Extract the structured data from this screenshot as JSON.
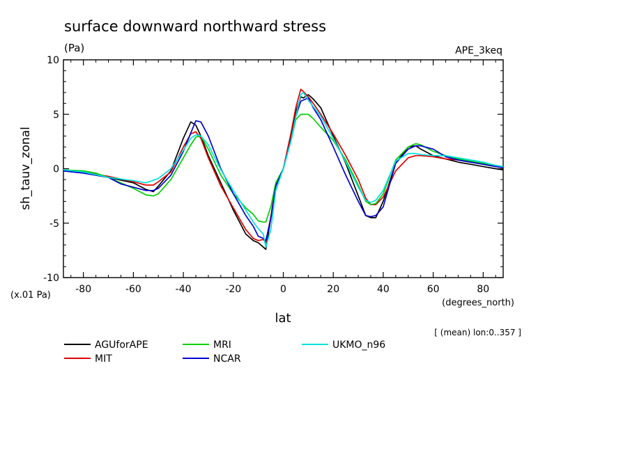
{
  "header": {
    "title": "surface downward northward stress",
    "units": "(Pa)",
    "dataset": "APE_3keq",
    "scale_note": "(x.01 Pa)",
    "x_units": "(degrees_north)",
    "mean_note": "[ (mean) lon:0..357 ]"
  },
  "chart_data": {
    "type": "line",
    "title": "surface downward northward stress",
    "xlabel": "lat",
    "ylabel": "sh_tauv_zonal",
    "xlim": [
      -88,
      88
    ],
    "ylim": [
      -10,
      10
    ],
    "x_ticks": [
      -80,
      -60,
      -40,
      -20,
      0,
      20,
      40,
      60,
      80
    ],
    "x_tick_labels": [
      "-80",
      "-60",
      "-40",
      "-20",
      "0",
      "20",
      "40",
      "60",
      "80"
    ],
    "y_ticks": [
      -10,
      -5,
      0,
      5,
      10
    ],
    "y_tick_labels": [
      "-10",
      "-5",
      "0",
      "5",
      "10"
    ],
    "grid": false,
    "legend_position": "bottom",
    "series": [
      {
        "name": "AGUforAPE",
        "color": "#000000",
        "x": [
          -88,
          -80,
          -70,
          -60,
          -55,
          -52,
          -50,
          -45,
          -40,
          -37,
          -35,
          -33,
          -30,
          -25,
          -20,
          -15,
          -12,
          -10,
          -8,
          -7,
          -5,
          -3,
          0,
          3,
          5,
          7,
          8,
          10,
          12,
          15,
          20,
          25,
          30,
          33,
          35,
          37,
          40,
          45,
          50,
          53,
          55,
          60,
          65,
          70,
          75,
          80,
          85,
          88
        ],
        "y": [
          -0.2,
          -0.4,
          -0.8,
          -1.3,
          -1.9,
          -2.1,
          -1.6,
          -0.2,
          2.8,
          4.3,
          4.0,
          3.0,
          1.2,
          -1.3,
          -3.8,
          -6.0,
          -6.6,
          -6.8,
          -7.2,
          -7.4,
          -4.5,
          -1.5,
          0,
          2.8,
          5.2,
          6.6,
          6.5,
          6.8,
          6.4,
          5.6,
          3.0,
          0.5,
          -2.5,
          -4.3,
          -4.5,
          -4.5,
          -3.0,
          0.5,
          2.0,
          2.1,
          1.8,
          1.2,
          0.9,
          0.6,
          0.4,
          0.2,
          0.0,
          -0.1
        ]
      },
      {
        "name": "MIT",
        "color": "#e00000",
        "x": [
          -88,
          -80,
          -70,
          -60,
          -55,
          -52,
          -50,
          -45,
          -40,
          -37,
          -35,
          -33,
          -30,
          -25,
          -20,
          -15,
          -12,
          -10,
          -8,
          -7,
          -5,
          -3,
          0,
          3,
          5,
          7,
          8,
          10,
          12,
          15,
          20,
          25,
          30,
          33,
          35,
          37,
          40,
          45,
          50,
          53,
          55,
          60,
          65,
          70,
          75,
          80,
          85,
          88
        ],
        "y": [
          -0.2,
          -0.3,
          -0.7,
          -1.2,
          -1.5,
          -1.5,
          -1.2,
          -0.3,
          2.0,
          3.2,
          3.4,
          2.8,
          1.0,
          -1.6,
          -3.6,
          -5.6,
          -6.4,
          -6.6,
          -6.5,
          -6.8,
          -4.4,
          -1.5,
          0,
          3.2,
          5.6,
          7.3,
          7.1,
          6.6,
          6.0,
          5.0,
          3.2,
          1.2,
          -1.0,
          -2.7,
          -3.3,
          -3.3,
          -2.6,
          -0.2,
          1.0,
          1.2,
          1.2,
          1.1,
          0.9,
          0.8,
          0.6,
          0.4,
          0.2,
          0.1
        ]
      },
      {
        "name": "MRI",
        "color": "#00d000",
        "x": [
          -88,
          -80,
          -75,
          -70,
          -60,
          -55,
          -52,
          -50,
          -45,
          -40,
          -37,
          -35,
          -33,
          -30,
          -25,
          -20,
          -15,
          -12,
          -10,
          -8,
          -7,
          -5,
          -3,
          0,
          3,
          5,
          7,
          8,
          10,
          12,
          15,
          20,
          25,
          30,
          33,
          35,
          37,
          40,
          45,
          50,
          53,
          55,
          60,
          65,
          70,
          75,
          80,
          85,
          88
        ],
        "y": [
          -0.1,
          -0.2,
          -0.4,
          -0.8,
          -1.8,
          -2.4,
          -2.5,
          -2.3,
          -1.0,
          1.0,
          2.2,
          2.9,
          3.0,
          1.8,
          -0.6,
          -2.3,
          -3.6,
          -4.2,
          -4.8,
          -4.9,
          -4.9,
          -3.5,
          -1.3,
          0,
          2.5,
          4.5,
          5.0,
          5.0,
          5.0,
          4.6,
          3.8,
          2.6,
          0.8,
          -1.5,
          -3.0,
          -3.3,
          -3.2,
          -2.3,
          0.8,
          2.0,
          2.3,
          2.2,
          1.6,
          1.2,
          0.9,
          0.7,
          0.5,
          0.3,
          0.2
        ]
      },
      {
        "name": "NCAR",
        "color": "#0000d0",
        "x": [
          -88,
          -80,
          -70,
          -65,
          -60,
          -55,
          -52,
          -50,
          -45,
          -40,
          -37,
          -35,
          -33,
          -30,
          -25,
          -20,
          -15,
          -12,
          -10,
          -8,
          -7,
          -5,
          -3,
          0,
          3,
          5,
          7,
          8,
          10,
          12,
          15,
          20,
          25,
          30,
          33,
          35,
          37,
          40,
          45,
          50,
          53,
          55,
          60,
          65,
          70,
          75,
          80,
          85,
          88
        ],
        "y": [
          -0.2,
          -0.4,
          -0.8,
          -1.4,
          -1.7,
          -2.0,
          -2.0,
          -1.8,
          -0.6,
          1.6,
          3.3,
          4.4,
          4.3,
          3.0,
          0.0,
          -2.3,
          -4.3,
          -5.3,
          -6.2,
          -6.4,
          -6.6,
          -4.6,
          -1.6,
          0,
          2.6,
          4.8,
          6.2,
          6.3,
          6.5,
          5.6,
          4.5,
          2.0,
          -0.6,
          -3.0,
          -4.3,
          -4.4,
          -4.3,
          -3.5,
          0.5,
          1.8,
          2.1,
          2.1,
          1.8,
          1.1,
          0.8,
          0.6,
          0.4,
          0.2,
          0.1
        ]
      },
      {
        "name": "UKMO_n96",
        "color": "#00e0e0",
        "x": [
          -88,
          -80,
          -70,
          -60,
          -55,
          -50,
          -45,
          -40,
          -37,
          -35,
          -33,
          -30,
          -25,
          -20,
          -15,
          -12,
          -10,
          -8,
          -7,
          -5,
          -3,
          0,
          3,
          5,
          7,
          8,
          10,
          12,
          15,
          20,
          25,
          30,
          33,
          35,
          37,
          40,
          45,
          50,
          53,
          55,
          60,
          65,
          70,
          75,
          80,
          85,
          88
        ],
        "y": [
          -0.1,
          -0.3,
          -0.8,
          -1.1,
          -1.3,
          -0.9,
          0.0,
          1.7,
          2.8,
          3.1,
          3.0,
          2.2,
          -0.1,
          -2.0,
          -3.8,
          -4.9,
          -5.5,
          -6.0,
          -7.2,
          -5.6,
          -2.0,
          0,
          2.5,
          4.8,
          6.8,
          7.0,
          6.3,
          5.7,
          4.8,
          2.8,
          0.6,
          -1.7,
          -2.9,
          -3.1,
          -2.9,
          -2.0,
          0.7,
          1.4,
          1.4,
          1.3,
          1.2,
          1.2,
          1.0,
          0.8,
          0.6,
          0.3,
          0.2
        ]
      }
    ]
  }
}
